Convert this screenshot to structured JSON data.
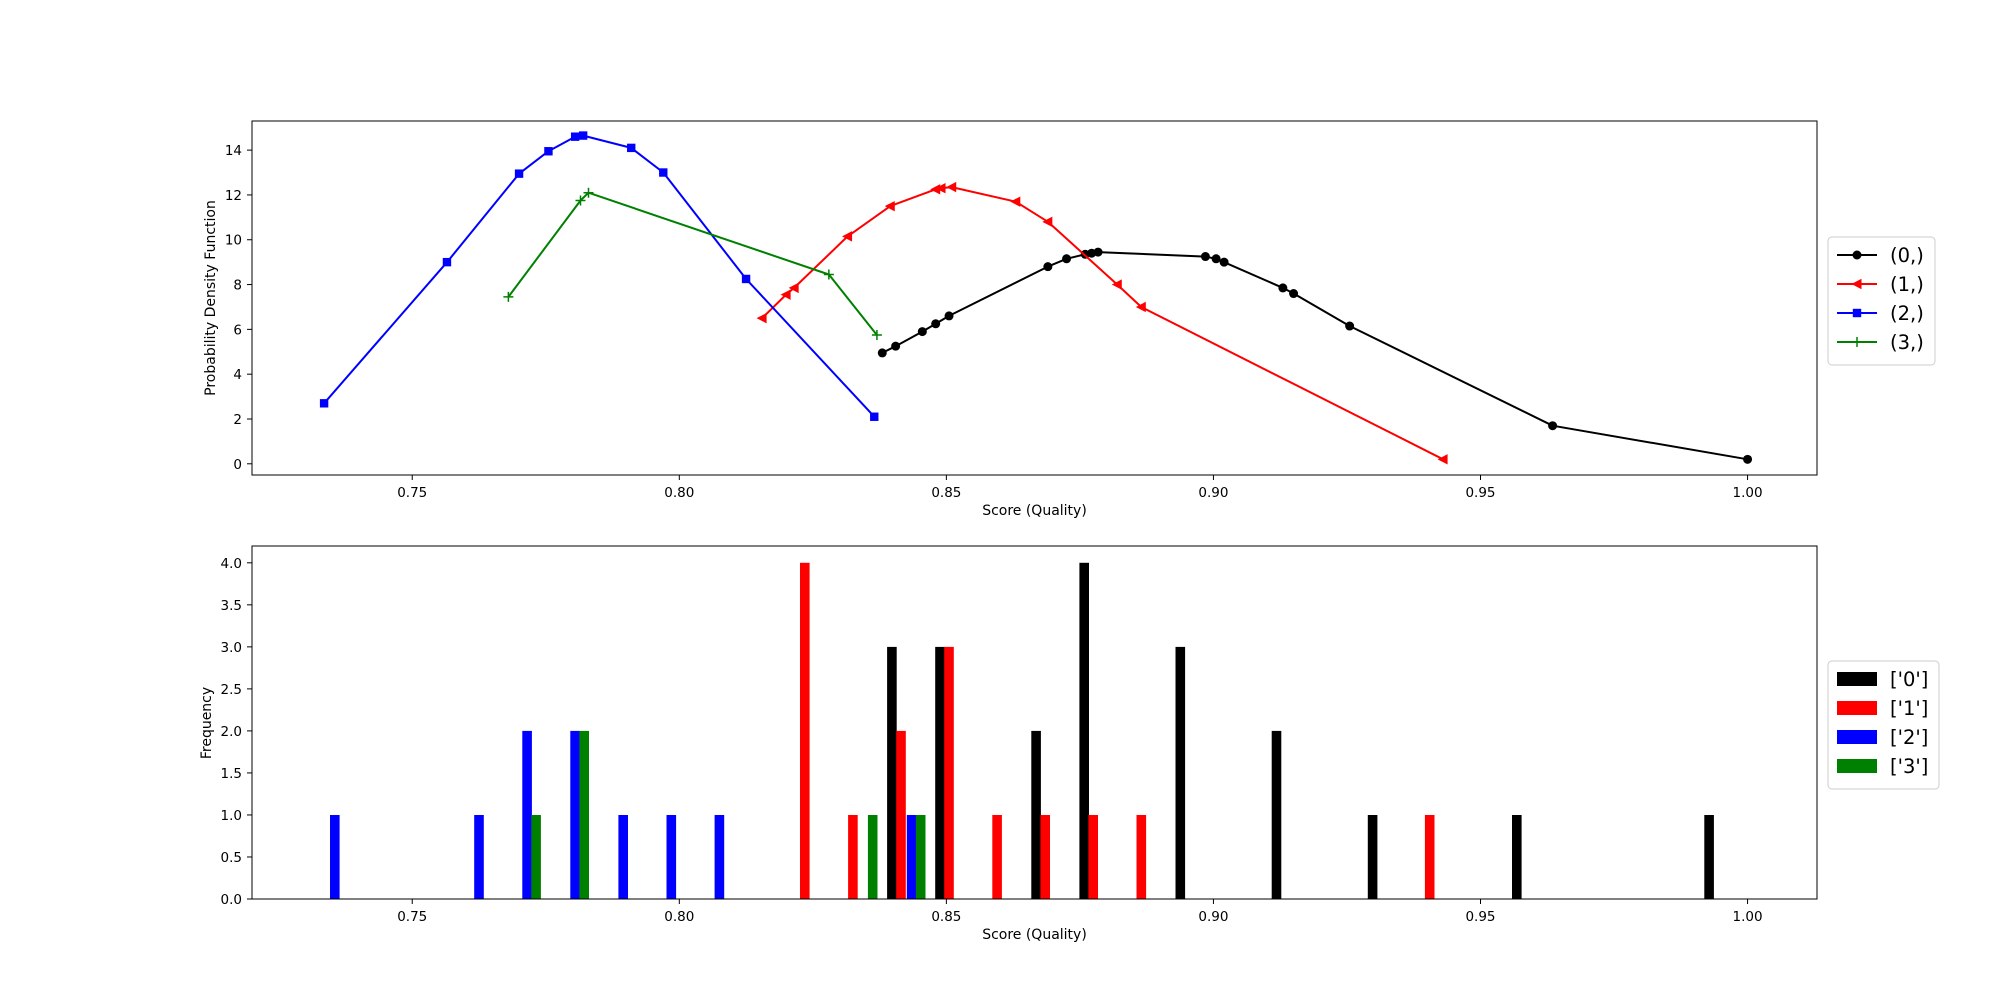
{
  "chart_data": [
    {
      "type": "line",
      "title": "",
      "xlabel": "Score (Quality)",
      "ylabel": "Probability Density Function",
      "xlim": [
        0.72,
        1.013
      ],
      "ylim": [
        -0.5,
        15.3
      ],
      "xticks": [
        "0.75",
        "0.80",
        "0.85",
        "0.90",
        "0.95",
        "1.00"
      ],
      "xtick_values": [
        0.75,
        0.8,
        0.85,
        0.9,
        0.95,
        1.0
      ],
      "yticks": [
        "0",
        "2",
        "4",
        "6",
        "8",
        "10",
        "12",
        "14"
      ],
      "ytick_values": [
        0,
        2,
        4,
        6,
        8,
        10,
        12,
        14
      ],
      "grid": false,
      "legend_position": "right",
      "series": [
        {
          "name": "(0,)",
          "color": "#000000",
          "marker": "circle",
          "x": [
            0.838,
            0.8405,
            0.8455,
            0.848,
            0.8505,
            0.869,
            0.8725,
            0.876,
            0.8772,
            0.8784,
            0.8985,
            0.9005,
            0.902,
            0.913,
            0.915,
            0.9255,
            0.9635,
            1.0
          ],
          "y": [
            4.95,
            5.25,
            5.9,
            6.25,
            6.6,
            8.8,
            9.15,
            9.35,
            9.4,
            9.45,
            9.25,
            9.15,
            9.0,
            7.85,
            7.6,
            6.15,
            1.7,
            0.2
          ]
        },
        {
          "name": "(1,)",
          "color": "#ff0000",
          "marker": "triangle-left",
          "x": [
            0.8155,
            0.82,
            0.8215,
            0.8315,
            0.8395,
            0.848,
            0.849,
            0.851,
            0.863,
            0.869,
            0.882,
            0.8865,
            0.943
          ],
          "y": [
            6.5,
            7.55,
            7.85,
            10.15,
            11.5,
            12.25,
            12.3,
            12.35,
            11.7,
            10.8,
            8.0,
            7.0,
            0.2
          ]
        },
        {
          "name": "(2,)",
          "color": "#0000ff",
          "marker": "square",
          "x": [
            0.7335,
            0.7565,
            0.77,
            0.7755,
            0.7805,
            0.782,
            0.791,
            0.797,
            0.8125,
            0.8365
          ],
          "y": [
            2.7,
            9.0,
            12.95,
            13.95,
            14.6,
            14.65,
            14.1,
            13.0,
            8.25,
            2.1
          ]
        },
        {
          "name": "(3,)",
          "color": "#008000",
          "marker": "plus",
          "x": [
            0.768,
            0.7815,
            0.783,
            0.828,
            0.837
          ],
          "y": [
            7.45,
            11.75,
            12.1,
            8.45,
            5.75
          ]
        }
      ]
    },
    {
      "type": "bar",
      "title": "",
      "xlabel": "Score (Quality)",
      "ylabel": "Frequency",
      "xlim": [
        0.72,
        1.013
      ],
      "ylim": [
        0,
        4.2
      ],
      "xticks": [
        "0.75",
        "0.80",
        "0.85",
        "0.90",
        "0.95",
        "1.00"
      ],
      "xtick_values": [
        0.75,
        0.8,
        0.85,
        0.9,
        0.95,
        1.0
      ],
      "yticks": [
        "0.0",
        "0.5",
        "1.0",
        "1.5",
        "2.0",
        "2.5",
        "3.0",
        "3.5",
        "4.0"
      ],
      "ytick_values": [
        0,
        0.5,
        1.0,
        1.5,
        2.0,
        2.5,
        3.0,
        3.5,
        4.0
      ],
      "bar_width": 0.0018,
      "grid": false,
      "legend_position": "right",
      "series": [
        {
          "name": "['0']",
          "color": "#000000",
          "x": [
            0.8398,
            0.8488,
            0.8668,
            0.8758,
            0.8938,
            0.9118,
            0.9298,
            0.9568,
            0.9928
          ],
          "values": [
            3,
            3,
            2,
            4,
            3,
            2,
            1,
            1,
            1
          ]
        },
        {
          "name": "['1']",
          "color": "#ff0000",
          "x": [
            0.8235,
            0.8325,
            0.8415,
            0.8505,
            0.8595,
            0.8685,
            0.8775,
            0.8865,
            0.9405
          ],
          "values": [
            4,
            1,
            2,
            3,
            1,
            1,
            1,
            1,
            1
          ]
        },
        {
          "name": "['2']",
          "color": "#0000ff",
          "x": [
            0.7355,
            0.7625,
            0.7715,
            0.7805,
            0.7895,
            0.7985,
            0.8075,
            0.8435
          ],
          "values": [
            1,
            1,
            2,
            2,
            1,
            1,
            1,
            1
          ]
        },
        {
          "name": "['3']",
          "color": "#008000",
          "x": [
            0.7732,
            0.7822,
            0.8362,
            0.8452
          ],
          "values": [
            1,
            2,
            1,
            1
          ]
        }
      ]
    }
  ]
}
